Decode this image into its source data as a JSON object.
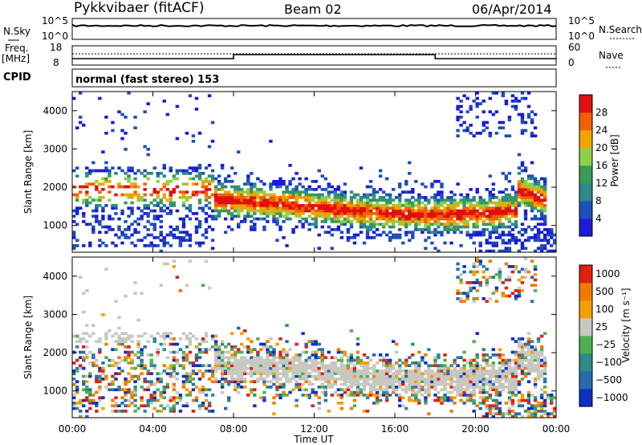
{
  "header": {
    "station": "Pykkvibaer (fitACF)",
    "beam": "Beam 02",
    "date": "06/Apr/2014"
  },
  "top_panels": {
    "nsky_label": "N.Sky",
    "nsky_ticks": [
      "10^5",
      "10^0"
    ],
    "nsearch_label": "N.Search",
    "nsearch_ticks": [
      "10^5",
      "10^0"
    ],
    "freq_label": "Freq.",
    "freq_unit": "[MHz]",
    "freq_ticks": [
      "18",
      "8"
    ],
    "nave_label": "Nave",
    "nave_ticks": [
      "60",
      "0"
    ],
    "cpid_label": "CPID",
    "cpid_text": "normal (fast stereo) 153"
  },
  "colors": {
    "power_scale": [
      "#1b1bd8",
      "#1f4fb8",
      "#2e8a8a",
      "#3a9a5a",
      "#8fd04a",
      "#f2a300",
      "#f06000",
      "#e01010"
    ],
    "velocity_scale": [
      "#1030c0",
      "#2a6ab0",
      "#2f8a8a",
      "#50b050",
      "#c8c8c0",
      "#f2a000",
      "#f07a00",
      "#e02010"
    ],
    "ground_scatter": "#c8c8c0"
  },
  "chart_data": [
    {
      "type": "heatmap",
      "panel": "power",
      "ylabel": "Slant Range [km]",
      "yticks": [
        "1000",
        "2000",
        "3000",
        "4000"
      ],
      "ylim": [
        300,
        4500
      ],
      "colorbar_label": "Power [dB]",
      "colorbar_ticks": [
        "4",
        "8",
        "12",
        "16",
        "20",
        "24",
        "28"
      ],
      "clim": [
        0,
        30
      ]
    },
    {
      "type": "heatmap",
      "panel": "velocity",
      "ylabel": "Slant Range [km]",
      "yticks": [
        "1000",
        "2000",
        "3000",
        "4000"
      ],
      "ylim": [
        300,
        4500
      ],
      "colorbar_label": "Velocity [m s⁻¹]",
      "colorbar_ticks": [
        "1000",
        "500",
        "100",
        "25",
        "−25",
        "−100",
        "−500",
        "−1000"
      ],
      "clim": [
        -1000,
        1000
      ]
    }
  ],
  "time_axis": {
    "label": "Time UT",
    "ticks": [
      "00:00",
      "04:00",
      "08:00",
      "12:00",
      "16:00",
      "20:00",
      "00:00"
    ],
    "range_hours": [
      0,
      24
    ]
  }
}
